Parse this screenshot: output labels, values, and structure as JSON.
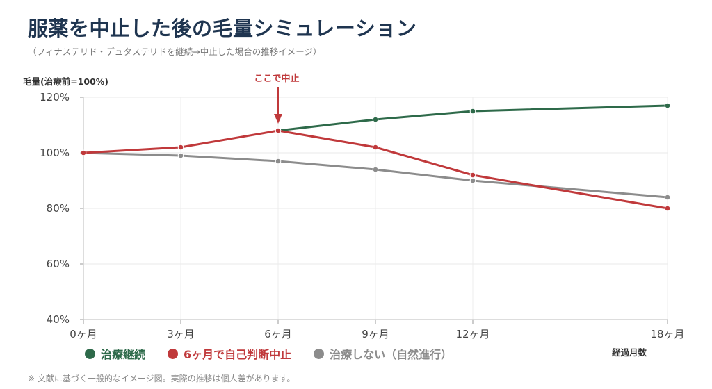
{
  "title": "服薬を中止した後の毛量シミュレーション",
  "subtitle": "（フィナステリド・デュタステリドを継続→中止した場合の推移イメージ）",
  "note": "※ 文献に基づく一般的なイメージ図。実際の推移は個人差があります。",
  "chart_data": {
    "type": "line",
    "ylabel": "毛量(治療前=100%)",
    "xlabel": "経過月数",
    "x": [
      0,
      3,
      6,
      9,
      12,
      18
    ],
    "x_tick_labels": [
      "0ヶ月",
      "3ヶ月",
      "6ヶ月",
      "9ヶ月",
      "12ヶ月",
      "18ヶ月"
    ],
    "ylim": [
      40,
      120
    ],
    "y_ticks": [
      40,
      60,
      80,
      100,
      120
    ],
    "y_tick_labels": [
      "40%",
      "60%",
      "80%",
      "100%",
      "120%"
    ],
    "grid": true,
    "legend_position": "bottom-left",
    "series": [
      {
        "name": "治療継続",
        "color": "#2e6a4a",
        "x": [
          6,
          9,
          12,
          18
        ],
        "values": [
          108,
          112,
          115,
          117
        ]
      },
      {
        "name": "治療しない（自然進行）",
        "color": "#8c8c8c",
        "x": [
          0,
          3,
          6,
          9,
          12,
          18
        ],
        "values": [
          100,
          99,
          97,
          94,
          90,
          84
        ]
      },
      {
        "name": "6ヶ月で自己判断中止",
        "color": "#c0393b",
        "x": [
          0,
          3,
          6,
          9,
          12,
          18
        ],
        "values": [
          100,
          102,
          108,
          102,
          92,
          80
        ]
      }
    ],
    "annotations": [
      {
        "text": "ここで中止",
        "x": 6,
        "y": 108,
        "color": "#c0393b"
      }
    ]
  },
  "legend_order": [
    0,
    2,
    1
  ]
}
